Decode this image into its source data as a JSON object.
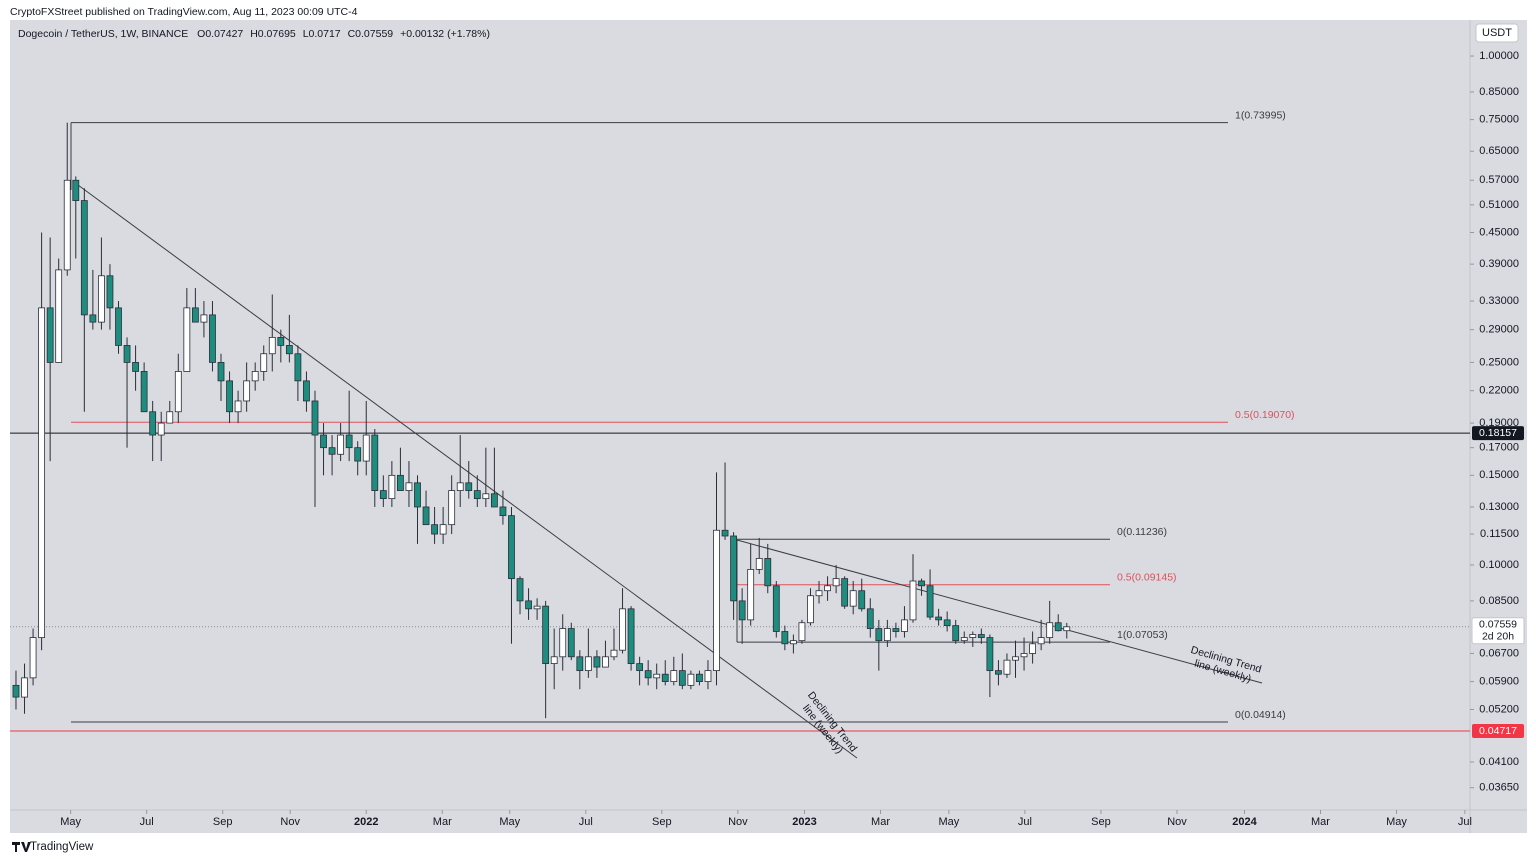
{
  "header": {
    "published": "CryptoFXStreet published on TradingView.com, Aug 11, 2023 00:09 UTC-4",
    "brand": "TradingView"
  },
  "chart_data": {
    "type": "candlestick",
    "symbol": "Dogecoin / TetherUS, 1W, BINANCE",
    "ohlc_labels": [
      "O",
      "H",
      "L",
      "C"
    ],
    "change": "+0.00132 (+1.78%)",
    "currency": "USDT",
    "countdown": "2d 20h",
    "up_color": "#ffffff",
    "down_color": "#1e8c7e",
    "log_scale": true,
    "grid": false,
    "candles": {
      "open": [
        0.058,
        0.055,
        0.06,
        0.072,
        0.32,
        0.25,
        0.38,
        0.57,
        0.52,
        0.31,
        0.3,
        0.37,
        0.32,
        0.27,
        0.25,
        0.24,
        0.2,
        0.18,
        0.19,
        0.2,
        0.24,
        0.32,
        0.3,
        0.31,
        0.25,
        0.23,
        0.2,
        0.21,
        0.23,
        0.24,
        0.26,
        0.28,
        0.27,
        0.26,
        0.23,
        0.21,
        0.18,
        0.17,
        0.165,
        0.18,
        0.17,
        0.16,
        0.18,
        0.14,
        0.135,
        0.15,
        0.14,
        0.145,
        0.13,
        0.12,
        0.115,
        0.12,
        0.14,
        0.145,
        0.14,
        0.135,
        0.138,
        0.13,
        0.125,
        0.094,
        0.085,
        0.082,
        0.083,
        0.064,
        0.066,
        0.075,
        0.066,
        0.062,
        0.066,
        0.063,
        0.066,
        0.068,
        0.082,
        0.064,
        0.062,
        0.06,
        0.061,
        0.059,
        0.062,
        0.058,
        0.061,
        0.059,
        0.062,
        0.117,
        0.114,
        0.085,
        0.078,
        0.098,
        0.103,
        0.091,
        0.074,
        0.07,
        0.071,
        0.077,
        0.087,
        0.089,
        0.091,
        0.094,
        0.083,
        0.089,
        0.082,
        0.075,
        0.071,
        0.075,
        0.074,
        0.078,
        0.093,
        0.091,
        0.079,
        0.078,
        0.076,
        0.071,
        0.072,
        0.073,
        0.072,
        0.062,
        0.061,
        0.065,
        0.066,
        0.067,
        0.07,
        0.072,
        0.077,
        0.07427
      ],
      "high": [
        0.062,
        0.064,
        0.075,
        0.45,
        0.44,
        0.4,
        0.74,
        0.58,
        0.55,
        0.38,
        0.44,
        0.39,
        0.33,
        0.28,
        0.27,
        0.25,
        0.21,
        0.2,
        0.21,
        0.26,
        0.35,
        0.35,
        0.33,
        0.33,
        0.26,
        0.24,
        0.22,
        0.25,
        0.25,
        0.27,
        0.34,
        0.29,
        0.31,
        0.27,
        0.24,
        0.22,
        0.19,
        0.18,
        0.19,
        0.22,
        0.175,
        0.21,
        0.185,
        0.15,
        0.16,
        0.17,
        0.16,
        0.15,
        0.14,
        0.13,
        0.13,
        0.15,
        0.18,
        0.16,
        0.15,
        0.17,
        0.17,
        0.14,
        0.13,
        0.095,
        0.09,
        0.086,
        0.085,
        0.075,
        0.08,
        0.077,
        0.068,
        0.075,
        0.068,
        0.071,
        0.075,
        0.09,
        0.083,
        0.066,
        0.065,
        0.064,
        0.065,
        0.066,
        0.067,
        0.062,
        0.062,
        0.065,
        0.152,
        0.159,
        0.116,
        0.09,
        0.11,
        0.113,
        0.11,
        0.093,
        0.076,
        0.073,
        0.078,
        0.09,
        0.093,
        0.095,
        0.1,
        0.095,
        0.093,
        0.094,
        0.086,
        0.078,
        0.078,
        0.077,
        0.083,
        0.105,
        0.094,
        0.098,
        0.082,
        0.081,
        0.078,
        0.074,
        0.074,
        0.075,
        0.073,
        0.065,
        0.067,
        0.071,
        0.072,
        0.074,
        0.078,
        0.085,
        0.08,
        0.07695
      ],
      "low": [
        0.052,
        0.051,
        0.058,
        0.068,
        0.16,
        0.25,
        0.37,
        0.4,
        0.2,
        0.29,
        0.29,
        0.29,
        0.26,
        0.17,
        0.22,
        0.2,
        0.16,
        0.16,
        0.19,
        0.19,
        0.24,
        0.3,
        0.28,
        0.24,
        0.21,
        0.19,
        0.19,
        0.2,
        0.22,
        0.23,
        0.24,
        0.25,
        0.25,
        0.21,
        0.2,
        0.13,
        0.15,
        0.15,
        0.16,
        0.16,
        0.15,
        0.15,
        0.13,
        0.13,
        0.13,
        0.14,
        0.13,
        0.11,
        0.12,
        0.11,
        0.11,
        0.115,
        0.13,
        0.135,
        0.13,
        0.13,
        0.13,
        0.12,
        0.07,
        0.08,
        0.078,
        0.078,
        0.05,
        0.057,
        0.062,
        0.065,
        0.057,
        0.06,
        0.06,
        0.063,
        0.065,
        0.067,
        0.062,
        0.058,
        0.058,
        0.057,
        0.058,
        0.058,
        0.057,
        0.057,
        0.058,
        0.057,
        0.058,
        0.112,
        0.078,
        0.07,
        0.076,
        0.096,
        0.088,
        0.072,
        0.068,
        0.067,
        0.07,
        0.076,
        0.084,
        0.085,
        0.088,
        0.082,
        0.08,
        0.081,
        0.072,
        0.062,
        0.069,
        0.072,
        0.072,
        0.077,
        0.087,
        0.078,
        0.076,
        0.074,
        0.07,
        0.07,
        0.069,
        0.07,
        0.055,
        0.058,
        0.06,
        0.06,
        0.062,
        0.064,
        0.068,
        0.07,
        0.074,
        0.0717
      ],
      "close": [
        0.055,
        0.06,
        0.072,
        0.32,
        0.25,
        0.38,
        0.57,
        0.52,
        0.31,
        0.3,
        0.37,
        0.32,
        0.27,
        0.25,
        0.24,
        0.2,
        0.18,
        0.19,
        0.2,
        0.24,
        0.32,
        0.3,
        0.31,
        0.25,
        0.23,
        0.2,
        0.21,
        0.23,
        0.24,
        0.26,
        0.28,
        0.27,
        0.26,
        0.23,
        0.21,
        0.18,
        0.17,
        0.165,
        0.18,
        0.17,
        0.16,
        0.18,
        0.14,
        0.135,
        0.15,
        0.14,
        0.145,
        0.13,
        0.12,
        0.115,
        0.12,
        0.14,
        0.145,
        0.14,
        0.135,
        0.138,
        0.13,
        0.125,
        0.094,
        0.085,
        0.082,
        0.083,
        0.064,
        0.066,
        0.075,
        0.066,
        0.062,
        0.066,
        0.063,
        0.066,
        0.068,
        0.082,
        0.064,
        0.062,
        0.06,
        0.061,
        0.059,
        0.062,
        0.058,
        0.061,
        0.059,
        0.062,
        0.117,
        0.114,
        0.085,
        0.078,
        0.098,
        0.103,
        0.091,
        0.074,
        0.07,
        0.071,
        0.077,
        0.087,
        0.089,
        0.091,
        0.094,
        0.083,
        0.089,
        0.082,
        0.075,
        0.071,
        0.075,
        0.074,
        0.078,
        0.093,
        0.091,
        0.079,
        0.078,
        0.076,
        0.071,
        0.072,
        0.073,
        0.072,
        0.062,
        0.061,
        0.065,
        0.066,
        0.067,
        0.07,
        0.072,
        0.077,
        0.07427,
        0.07559
      ]
    },
    "xlim": [
      -0.7,
      170.2
    ],
    "xticks": [
      {
        "value": 6.4,
        "label": "May"
      },
      {
        "value": 15.3,
        "label": "Jul"
      },
      {
        "value": 24.2,
        "label": "Sep"
      },
      {
        "value": 32.1,
        "label": "Nov"
      },
      {
        "value": 41.0,
        "label": "2022"
      },
      {
        "value": 49.9,
        "label": "Mar"
      },
      {
        "value": 57.8,
        "label": "May"
      },
      {
        "value": 66.7,
        "label": "Jul"
      },
      {
        "value": 75.6,
        "label": "Sep"
      },
      {
        "value": 84.5,
        "label": "Nov"
      },
      {
        "value": 92.3,
        "label": "2023"
      },
      {
        "value": 101.2,
        "label": "Mar"
      },
      {
        "value": 109.2,
        "label": "May"
      },
      {
        "value": 118.1,
        "label": "Jul"
      },
      {
        "value": 127.0,
        "label": "Sep"
      },
      {
        "value": 135.9,
        "label": "Nov"
      },
      {
        "value": 143.8,
        "label": "2024"
      },
      {
        "value": 152.7,
        "label": "Mar"
      },
      {
        "value": 161.6,
        "label": "May"
      },
      {
        "value": 169.6,
        "label": "Jul"
      }
    ],
    "ylim": [
      0.033,
      1.177
    ],
    "yticks": [
      {
        "value": 1,
        "label": "1.00000"
      },
      {
        "value": 0.85,
        "label": "0.85000"
      },
      {
        "value": 0.75,
        "label": "0.75000"
      },
      {
        "value": 0.65,
        "label": "0.65000"
      },
      {
        "value": 0.57,
        "label": "0.57000"
      },
      {
        "value": 0.51,
        "label": "0.51000"
      },
      {
        "value": 0.45,
        "label": "0.45000"
      },
      {
        "value": 0.39,
        "label": "0.39000"
      },
      {
        "value": 0.33,
        "label": "0.33000"
      },
      {
        "value": 0.29,
        "label": "0.29000"
      },
      {
        "value": 0.25,
        "label": "0.25000"
      },
      {
        "value": 0.22,
        "label": "0.22000"
      },
      {
        "value": 0.19,
        "label": "0.19000"
      },
      {
        "value": 0.17,
        "label": "0.17000"
      },
      {
        "value": 0.15,
        "label": "0.15000"
      },
      {
        "value": 0.13,
        "label": "0.13000"
      },
      {
        "value": 0.115,
        "label": "0.11500"
      },
      {
        "value": 0.1,
        "label": "0.10000"
      },
      {
        "value": 0.085,
        "label": "0.08500"
      },
      {
        "value": 0.067,
        "label": "0.06700"
      },
      {
        "value": 0.059,
        "label": "0.05900"
      },
      {
        "value": 0.052,
        "label": "0.05200"
      },
      {
        "value": 0.041,
        "label": "0.04100"
      },
      {
        "value": 0.0365,
        "label": "0.03650"
      }
    ],
    "fib_levels": [
      {
        "label": "1(0.73995)",
        "value": 0.73995,
        "color": "#3a3d45"
      },
      {
        "label": "0.5(0.19070)",
        "value": 0.1907,
        "color": "#e0505c"
      },
      {
        "label": "0(0.04914)",
        "value": 0.04914,
        "color": "#3a3d45"
      },
      {
        "label": "0(0.11236)",
        "value": 0.11236,
        "color": "#3a3d45"
      },
      {
        "label": "0.5(0.09145)",
        "value": 0.09145,
        "color": "#e0505c"
      },
      {
        "label": "1(0.07053)",
        "value": 0.07053,
        "color": "#3a3d45"
      }
    ],
    "price_lines": [
      {
        "value": 0.18157,
        "color": "#131722"
      },
      {
        "value": 0.04717,
        "color": "#f23645"
      }
    ],
    "annotations": [
      [
        "Declining Trend",
        "line (weekly)"
      ],
      [
        "Declining Trend",
        "line (weekly)"
      ]
    ]
  }
}
